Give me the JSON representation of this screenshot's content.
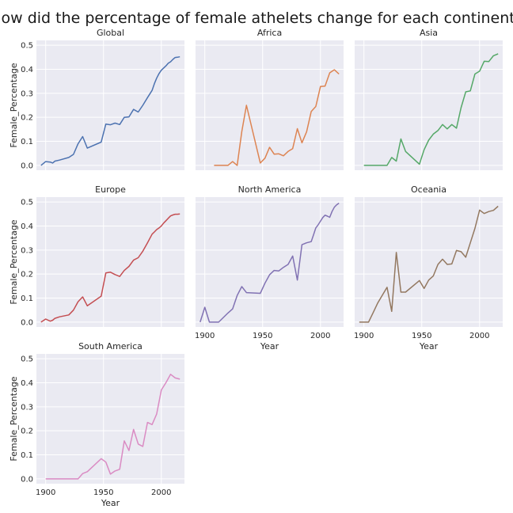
{
  "figure": {
    "title": "How did the percentage of female athelets change for each continent?",
    "xlabel": "Year",
    "ylabel": "Female_Percentage",
    "background": "#eaeaf2",
    "grid": true,
    "xticks": [
      1900,
      1950,
      2000
    ],
    "yticks": [
      0.0,
      0.1,
      0.2,
      0.3,
      0.4,
      0.5
    ],
    "xlim": [
      1892,
      2020
    ],
    "ylim": [
      -0.02,
      0.52
    ]
  },
  "chart_data": [
    {
      "type": "line",
      "title": "Global",
      "color": "#4c72b0",
      "x": [
        1896,
        1900,
        1904,
        1906,
        1908,
        1912,
        1920,
        1924,
        1928,
        1932,
        1936,
        1948,
        1952,
        1956,
        1960,
        1964,
        1968,
        1972,
        1976,
        1980,
        1984,
        1988,
        1992,
        1994,
        1996,
        1998,
        2000,
        2002,
        2004,
        2006,
        2008,
        2010,
        2012,
        2014,
        2016
      ],
      "y": [
        0.0,
        0.016,
        0.014,
        0.01,
        0.018,
        0.022,
        0.033,
        0.046,
        0.09,
        0.12,
        0.072,
        0.097,
        0.172,
        0.169,
        0.176,
        0.17,
        0.2,
        0.202,
        0.233,
        0.222,
        0.25,
        0.282,
        0.312,
        0.34,
        0.363,
        0.382,
        0.396,
        0.405,
        0.414,
        0.425,
        0.431,
        0.441,
        0.449,
        0.45,
        0.452
      ]
    },
    {
      "type": "line",
      "title": "Africa",
      "color": "#dd8452",
      "x": [
        1908,
        1912,
        1920,
        1924,
        1928,
        1932,
        1936,
        1948,
        1952,
        1956,
        1960,
        1964,
        1968,
        1972,
        1976,
        1980,
        1984,
        1988,
        1992,
        1996,
        2000,
        2004,
        2008,
        2012,
        2016
      ],
      "y": [
        0.0,
        0.0,
        0.0,
        0.016,
        0.0,
        0.14,
        0.25,
        0.01,
        0.03,
        0.075,
        0.047,
        0.048,
        0.04,
        0.058,
        0.07,
        0.153,
        0.094,
        0.14,
        0.224,
        0.245,
        0.328,
        0.33,
        0.385,
        0.398,
        0.38
      ]
    },
    {
      "type": "line",
      "title": "Asia",
      "color": "#55a868",
      "x": [
        1900,
        1904,
        1908,
        1912,
        1920,
        1924,
        1928,
        1932,
        1936,
        1948,
        1952,
        1956,
        1960,
        1964,
        1968,
        1972,
        1976,
        1980,
        1984,
        1988,
        1992,
        1996,
        2000,
        2004,
        2008,
        2012,
        2016
      ],
      "y": [
        0.0,
        0.0,
        0.0,
        0.0,
        0.0,
        0.033,
        0.018,
        0.11,
        0.058,
        0.005,
        0.065,
        0.105,
        0.13,
        0.145,
        0.17,
        0.152,
        0.17,
        0.155,
        0.24,
        0.306,
        0.31,
        0.38,
        0.392,
        0.433,
        0.432,
        0.456,
        0.464
      ]
    },
    {
      "type": "line",
      "title": "Europe",
      "color": "#c44e52",
      "x": [
        1896,
        1900,
        1904,
        1906,
        1908,
        1912,
        1920,
        1924,
        1928,
        1932,
        1936,
        1948,
        1952,
        1956,
        1960,
        1964,
        1968,
        1972,
        1976,
        1980,
        1984,
        1988,
        1992,
        1994,
        1996,
        1998,
        2000,
        2002,
        2004,
        2006,
        2008,
        2010,
        2012,
        2014,
        2016
      ],
      "y": [
        0.0,
        0.013,
        0.004,
        0.008,
        0.016,
        0.022,
        0.03,
        0.05,
        0.085,
        0.105,
        0.068,
        0.108,
        0.205,
        0.208,
        0.198,
        0.19,
        0.215,
        0.232,
        0.258,
        0.268,
        0.295,
        0.33,
        0.366,
        0.375,
        0.385,
        0.392,
        0.4,
        0.412,
        0.422,
        0.432,
        0.442,
        0.446,
        0.449,
        0.449,
        0.45
      ]
    },
    {
      "type": "line",
      "title": "North America",
      "color": "#8172b3",
      "x": [
        1896,
        1900,
        1904,
        1908,
        1912,
        1920,
        1924,
        1928,
        1932,
        1936,
        1948,
        1952,
        1956,
        1960,
        1964,
        1968,
        1972,
        1976,
        1980,
        1984,
        1988,
        1992,
        1994,
        1996,
        1998,
        2000,
        2002,
        2004,
        2006,
        2008,
        2010,
        2012,
        2014,
        2016
      ],
      "y": [
        0.0,
        0.062,
        0.0,
        0.0,
        0.0,
        0.038,
        0.055,
        0.111,
        0.148,
        0.123,
        0.12,
        0.162,
        0.197,
        0.215,
        0.213,
        0.228,
        0.24,
        0.275,
        0.175,
        0.322,
        0.33,
        0.335,
        0.363,
        0.392,
        0.405,
        0.42,
        0.435,
        0.445,
        0.441,
        0.436,
        0.46,
        0.478,
        0.488,
        0.495
      ]
    },
    {
      "type": "line",
      "title": "Oceania",
      "color": "#937860",
      "x": [
        1896,
        1900,
        1904,
        1908,
        1912,
        1920,
        1924,
        1928,
        1932,
        1936,
        1948,
        1952,
        1956,
        1960,
        1964,
        1968,
        1972,
        1976,
        1980,
        1984,
        1988,
        1992,
        1996,
        2000,
        2004,
        2008,
        2012,
        2016
      ],
      "y": [
        0.0,
        0.0,
        0.0,
        0.04,
        0.08,
        0.145,
        0.045,
        0.29,
        0.125,
        0.125,
        0.173,
        0.14,
        0.175,
        0.192,
        0.24,
        0.262,
        0.24,
        0.242,
        0.298,
        0.293,
        0.27,
        0.33,
        0.39,
        0.466,
        0.452,
        0.46,
        0.465,
        0.482
      ]
    },
    {
      "type": "line",
      "title": "South America",
      "color": "#da8bc3",
      "x": [
        1900,
        1904,
        1908,
        1912,
        1920,
        1924,
        1928,
        1932,
        1936,
        1948,
        1952,
        1956,
        1960,
        1964,
        1968,
        1972,
        1976,
        1980,
        1984,
        1988,
        1992,
        1996,
        2000,
        2004,
        2008,
        2012,
        2016
      ],
      "y": [
        0.0,
        0.0,
        0.0,
        0.0,
        0.0,
        0.0,
        0.0,
        0.022,
        0.03,
        0.084,
        0.07,
        0.02,
        0.033,
        0.04,
        0.158,
        0.118,
        0.206,
        0.145,
        0.135,
        0.235,
        0.226,
        0.27,
        0.37,
        0.4,
        0.435,
        0.42,
        0.415
      ]
    }
  ]
}
